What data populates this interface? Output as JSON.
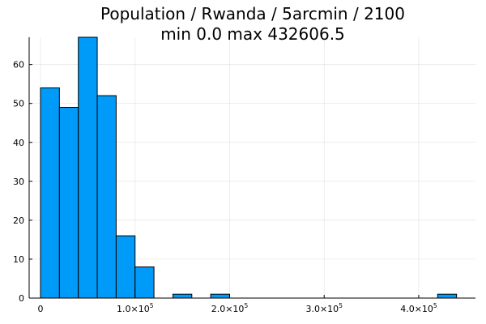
{
  "chart_data": {
    "type": "bar",
    "title": "Population / Rwanda / 5arcmin / 2100",
    "subtitle": "min 0.0  max 432606.5",
    "xlabel": "",
    "ylabel": "",
    "bin_width": 20000,
    "bins": [
      {
        "x0": 0,
        "x1": 20000,
        "count": 54
      },
      {
        "x0": 20000,
        "x1": 40000,
        "count": 49
      },
      {
        "x0": 40000,
        "x1": 60000,
        "count": 67
      },
      {
        "x0": 60000,
        "x1": 80000,
        "count": 52
      },
      {
        "x0": 80000,
        "x1": 100000,
        "count": 16
      },
      {
        "x0": 100000,
        "x1": 120000,
        "count": 8
      },
      {
        "x0": 140000,
        "x1": 160000,
        "count": 1
      },
      {
        "x0": 180000,
        "x1": 200000,
        "count": 1
      },
      {
        "x0": 420000,
        "x1": 440000,
        "count": 1
      }
    ],
    "xlim": [
      -12000,
      460000
    ],
    "ylim": [
      0,
      67
    ],
    "xticks": [
      {
        "value": 0,
        "label": "0",
        "sup": ""
      },
      {
        "value": 100000,
        "label": "1.0×10",
        "sup": "5"
      },
      {
        "value": 200000,
        "label": "2.0×10",
        "sup": "5"
      },
      {
        "value": 300000,
        "label": "3.0×10",
        "sup": "5"
      },
      {
        "value": 400000,
        "label": "4.0×10",
        "sup": "5"
      }
    ],
    "yticks": [
      0,
      10,
      20,
      30,
      40,
      50,
      60
    ],
    "grid": true,
    "legend": "none",
    "bar_color": "#009af9"
  }
}
